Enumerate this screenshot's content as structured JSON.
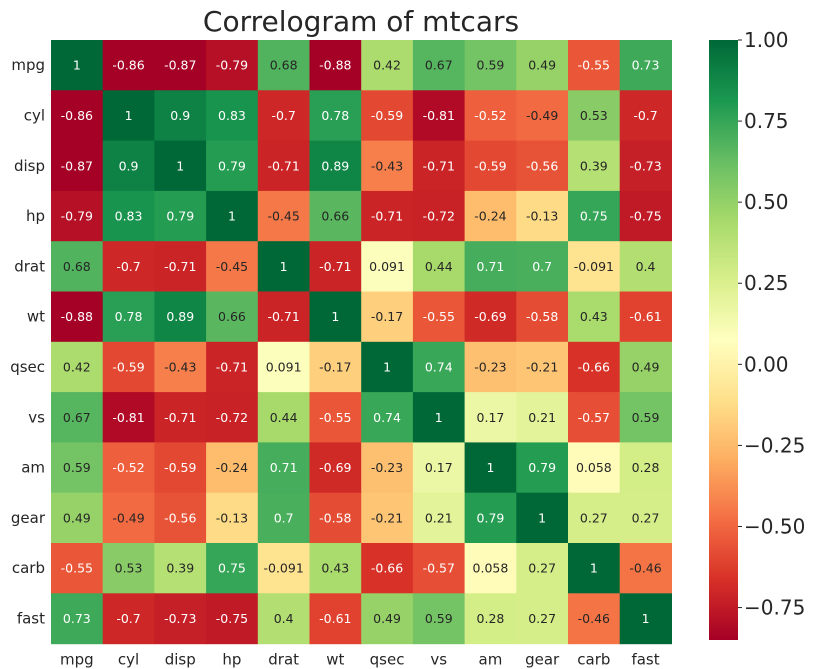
{
  "chart_data": {
    "type": "heatmap",
    "title": "Correlogram of mtcars",
    "xlabel": "",
    "ylabel": "",
    "colormap": "RdYlGn",
    "vmin": -0.85,
    "vmax": 1.0,
    "colorbar_ticks": [
      1.0,
      0.75,
      0.5,
      0.25,
      0.0,
      -0.25,
      -0.5,
      -0.75
    ],
    "colorbar_tick_labels": [
      "1.00",
      "0.75",
      "0.50",
      "0.25",
      "0.00",
      "−0.25",
      "−0.50",
      "−0.75"
    ],
    "x_labels": [
      "mpg",
      "cyl",
      "disp",
      "hp",
      "drat",
      "wt",
      "qsec",
      "vs",
      "am",
      "gear",
      "carb",
      "fast"
    ],
    "y_labels": [
      "mpg",
      "cyl",
      "disp",
      "hp",
      "drat",
      "wt",
      "qsec",
      "vs",
      "am",
      "gear",
      "carb",
      "fast"
    ],
    "annotations": [
      [
        "1",
        "-0.86",
        "-0.87",
        "-0.79",
        "0.68",
        "-0.88",
        "0.42",
        "0.67",
        "0.59",
        "0.49",
        "-0.55",
        "0.73"
      ],
      [
        "-0.86",
        "1",
        "0.9",
        "0.83",
        "-0.7",
        "0.78",
        "-0.59",
        "-0.81",
        "-0.52",
        "-0.49",
        "0.53",
        "-0.7"
      ],
      [
        "-0.87",
        "0.9",
        "1",
        "0.79",
        "-0.71",
        "0.89",
        "-0.43",
        "-0.71",
        "-0.59",
        "-0.56",
        "0.39",
        "-0.73"
      ],
      [
        "-0.79",
        "0.83",
        "0.79",
        "1",
        "-0.45",
        "0.66",
        "-0.71",
        "-0.72",
        "-0.24",
        "-0.13",
        "0.75",
        "-0.75"
      ],
      [
        "0.68",
        "-0.7",
        "-0.71",
        "-0.45",
        "1",
        "-0.71",
        "0.091",
        "0.44",
        "0.71",
        "0.7",
        "-0.091",
        "0.4"
      ],
      [
        "-0.88",
        "0.78",
        "0.89",
        "0.66",
        "-0.71",
        "1",
        "-0.17",
        "-0.55",
        "-0.69",
        "-0.58",
        "0.43",
        "-0.61"
      ],
      [
        "0.42",
        "-0.59",
        "-0.43",
        "-0.71",
        "0.091",
        "-0.17",
        "1",
        "0.74",
        "-0.23",
        "-0.21",
        "-0.66",
        "0.49"
      ],
      [
        "0.67",
        "-0.81",
        "-0.71",
        "-0.72",
        "0.44",
        "-0.55",
        "0.74",
        "1",
        "0.17",
        "0.21",
        "-0.57",
        "0.59"
      ],
      [
        "0.59",
        "-0.52",
        "-0.59",
        "-0.24",
        "0.71",
        "-0.69",
        "-0.23",
        "0.17",
        "1",
        "0.79",
        "0.058",
        "0.28"
      ],
      [
        "0.49",
        "-0.49",
        "-0.56",
        "-0.13",
        "0.7",
        "-0.58",
        "-0.21",
        "0.21",
        "0.79",
        "1",
        "0.27",
        "0.27"
      ],
      [
        "-0.55",
        "0.53",
        "0.39",
        "0.75",
        "-0.091",
        "0.43",
        "-0.66",
        "-0.57",
        "0.058",
        "0.27",
        "1",
        "-0.46"
      ],
      [
        "0.73",
        "-0.7",
        "-0.73",
        "-0.75",
        "0.4",
        "-0.61",
        "0.49",
        "0.59",
        "0.28",
        "0.27",
        "-0.46",
        "1"
      ]
    ]
  }
}
